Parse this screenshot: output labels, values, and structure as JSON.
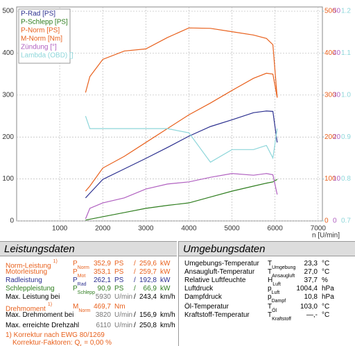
{
  "chart_data": {
    "type": "line",
    "x": [
      1600,
      1700,
      2000,
      2500,
      3000,
      3500,
      4000,
      4500,
      5000,
      5500,
      5800,
      5950,
      6050
    ],
    "series": [
      {
        "name": "P-Rad [PS]",
        "color": "#2b2f8f",
        "values": [
          55,
          66,
          99,
          124,
          149,
          175,
          202,
          225,
          241,
          258,
          262,
          261,
          187
        ]
      },
      {
        "name": "P-Schlepp [PS]",
        "color": "#2e7d1e",
        "values": [
          2,
          4,
          10,
          20,
          30,
          37,
          43,
          57,
          71,
          83,
          90,
          93,
          99
        ]
      },
      {
        "name": "P-Norm [PS]",
        "color": "#e8601c",
        "values": [
          71,
          83,
          126,
          154,
          187,
          220,
          253,
          281,
          311,
          340,
          352,
          350,
          294
        ]
      },
      {
        "name": "M-Norm [Nm]",
        "color": "#e8601c",
        "axis": "y2",
        "values": [
          306,
          344,
          385,
          405,
          410,
          437,
          460,
          459,
          451,
          443,
          435,
          420,
          294
        ]
      },
      {
        "name": "Zündung [°]",
        "color": "#b060c0",
        "axis": "y3",
        "values": [
          0.5,
          3,
          4.3,
          5.5,
          7.6,
          8.8,
          9.3,
          10.4,
          11.3,
          10.9,
          11.3,
          11,
          6.3
        ]
      },
      {
        "name": "Lambda (OBD) []",
        "color": "#8dd6da",
        "axis": "y4",
        "values": [
          0.95,
          0.92,
          0.92,
          0.92,
          0.92,
          0.92,
          0.91,
          0.84,
          0.87,
          0.87,
          0.88,
          0.85,
          0.92
        ]
      }
    ],
    "xlabel": "n [U/min]",
    "xlim": [
      0,
      7100
    ],
    "xticks": [
      1000,
      2000,
      3000,
      4000,
      5000,
      6000,
      7000
    ],
    "ylim": [
      0,
      510
    ],
    "yticks": [
      0,
      100,
      200,
      300,
      400,
      500
    ],
    "y2lim": [
      0,
      510
    ],
    "y2ticks": [
      0,
      100,
      200,
      300,
      400,
      500
    ],
    "y3lim": [
      0,
      51
    ],
    "y3ticks": [
      0,
      10,
      20,
      30,
      40,
      50
    ],
    "y4lim": [
      0.7,
      1.21
    ],
    "y4ticks": [
      0.7,
      0.8,
      0.9,
      {
        "value": 1,
        "label": "1.0"
      },
      1.1,
      1.2
    ],
    "grid": true,
    "legend": "top-left"
  },
  "leistungsdaten": {
    "title": "Leistungsdaten",
    "rows": [
      {
        "label": "Norm-Leistung",
        "note": "1)",
        "symbol": "P",
        "sub": "Norm",
        "v1": "352,9",
        "u1": "PS",
        "sep": "/",
        "v2": "259,6",
        "u2": "kW",
        "color": "#e8601c"
      },
      {
        "label": "Motorleistung",
        "symbol": "P",
        "sub": "Mot",
        "v1": "353,1",
        "u1": "PS",
        "sep": "/",
        "v2": "259,7",
        "u2": "kW",
        "color": "#e8601c"
      },
      {
        "label": "Radleistung",
        "symbol": "P",
        "sub": "Rad",
        "v1": "262,1",
        "u1": "PS",
        "sep": "/",
        "v2": "192,8",
        "u2": "kW",
        "color": "#2b2f8f"
      },
      {
        "label": "Schleppleistung",
        "symbol": "P",
        "sub": "Schlepp",
        "v1": "90,9",
        "u1": "PS",
        "sep": "/",
        "v2": "66,9",
        "u2": "kW",
        "color": "#2e7d1e"
      },
      {
        "label": "Max. Leistung bei",
        "v1": "5930",
        "u1": "U/min",
        "sep": "/",
        "v2": "243,4",
        "u2": "km/h",
        "color": "#000000"
      },
      {
        "label": "Drehmoment",
        "note": "1)",
        "symbol": "M",
        "sub": "Norm",
        "v1": "469,7",
        "u1": "Nm",
        "color": "#e8601c"
      },
      {
        "label": "Max. Drehmoment bei",
        "v1": "3820",
        "u1": "U/min",
        "sep": "/",
        "v2": "156,9",
        "u2": "km/h",
        "color": "#000000"
      },
      {
        "label": "Max. erreichte Drehzahl",
        "v1": "6110",
        "u1": "U/min",
        "sep": "/",
        "v2": "250,8",
        "u2": "km/h",
        "color": "#000000"
      }
    ],
    "footnotes": [
      {
        "text": "1) Korrektur nach EWG 80/1269"
      },
      {
        "text": "Korrektur-Faktoren: Q",
        "sub": "f",
        "post": "=  0,00 %"
      }
    ]
  },
  "umgebungsdaten": {
    "title": "Umgebungsdaten",
    "rows": [
      {
        "label": "Umgebungs-Temperatur",
        "symbol": "T",
        "sub": "Umgebung",
        "v1": "23,3",
        "u1": "°C"
      },
      {
        "label": "Ansaugluft-Temperatur",
        "symbol": "T",
        "sub": "Ansaugluft",
        "v1": "27,0",
        "u1": "°C"
      },
      {
        "label": "Relative Luftfeuchte",
        "symbol": "H",
        "sub": "Luft",
        "v1": "37,7",
        "u1": "%"
      },
      {
        "label": "Luftdruck",
        "symbol": "p",
        "sub": "Luft",
        "v1": "1004,4",
        "u1": "hPa"
      },
      {
        "label": "Dampfdruck",
        "symbol": "p",
        "sub": "Dampf",
        "v1": "10,8",
        "u1": "hPa"
      },
      {
        "label": "Öl-Temperatur",
        "symbol": "T",
        "sub": "Öl",
        "v1": "103,0",
        "u1": "°C"
      },
      {
        "label": "Kraftstoff-Temperatur",
        "symbol": "T",
        "sub": "Kraftstoff",
        "v1": "—,-",
        "u1": "°C"
      }
    ]
  }
}
